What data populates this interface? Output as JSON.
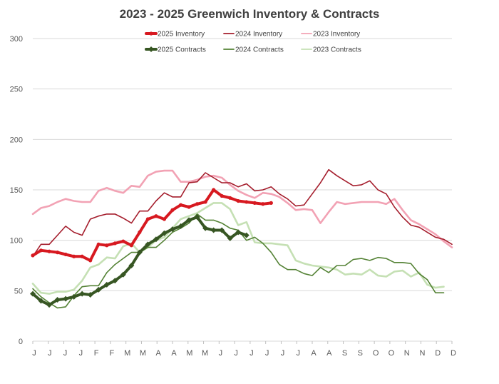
{
  "chart_data": {
    "type": "line",
    "title": "2023 - 2025 Greenwich Inventory & Contracts",
    "xlabel": "",
    "ylabel": "",
    "ylim": [
      0,
      300
    ],
    "yticks": [
      0,
      50,
      100,
      150,
      200,
      250,
      300
    ],
    "grid": true,
    "legend_position": "top",
    "x_tick_labels": [
      "J",
      "J",
      "J",
      "J",
      "F",
      "F",
      "M",
      "M",
      "A",
      "A",
      "M",
      "M",
      "J",
      "J",
      "J",
      "J",
      "J",
      "J",
      "A",
      "A",
      "S",
      "S",
      "O",
      "O",
      "N",
      "N",
      "D",
      "D"
    ],
    "x_count": 52,
    "series": [
      {
        "name": "2025 Inventory",
        "color": "#d71920",
        "style": "thick-marker",
        "values": [
          85,
          90,
          89,
          88,
          86,
          84,
          84,
          80,
          96,
          95,
          97,
          99,
          95,
          108,
          121,
          124,
          121,
          130,
          135,
          133,
          136,
          138,
          150,
          144,
          142,
          139,
          138,
          137,
          136,
          137
        ]
      },
      {
        "name": "2024 Inventory",
        "color": "#a51e2d",
        "style": "line",
        "values": [
          84,
          96,
          96,
          105,
          114,
          108,
          105,
          121,
          124,
          126,
          126,
          122,
          117,
          129,
          129,
          139,
          147,
          143,
          143,
          157,
          158,
          167,
          162,
          157,
          157,
          153,
          156,
          149,
          150,
          153,
          146,
          141,
          134,
          135,
          146,
          157,
          170,
          164,
          159,
          154,
          155,
          159,
          150,
          146,
          133,
          123,
          115,
          113,
          108,
          103,
          101,
          96
        ]
      },
      {
        "name": "2023 Inventory",
        "color": "#f2a2b4",
        "style": "line",
        "values": [
          126,
          132,
          134,
          138,
          141,
          139,
          138,
          138,
          149,
          152,
          149,
          147,
          154,
          153,
          164,
          168,
          169,
          169,
          158,
          158,
          160,
          163,
          164,
          162,
          155,
          149,
          145,
          142,
          147,
          146,
          143,
          137,
          130,
          131,
          130,
          117,
          128,
          138,
          136,
          137,
          138,
          138,
          138,
          136,
          141,
          130,
          120,
          116,
          111,
          106,
          99,
          93
        ]
      },
      {
        "name": "2025 Contracts",
        "color": "#375623",
        "style": "thick-marker",
        "values": [
          47,
          40,
          36,
          41,
          42,
          44,
          47,
          46,
          51,
          56,
          60,
          66,
          75,
          88,
          96,
          101,
          107,
          111,
          114,
          120,
          123,
          112,
          110,
          110,
          102,
          108,
          105
        ]
      },
      {
        "name": "2024 Contracts",
        "color": "#548235",
        "style": "line",
        "values": [
          52,
          44,
          38,
          33,
          34,
          45,
          54,
          55,
          55,
          68,
          76,
          82,
          88,
          88,
          93,
          93,
          100,
          108,
          112,
          117,
          126,
          120,
          120,
          117,
          112,
          110,
          100,
          103,
          97,
          88,
          76,
          71,
          71,
          67,
          65,
          73,
          68,
          75,
          75,
          81,
          82,
          80,
          83,
          82,
          78,
          78,
          77,
          67,
          61,
          48,
          48
        ]
      },
      {
        "name": "2023 Contracts",
        "color": "#c5e0b4",
        "style": "line",
        "values": [
          57,
          48,
          47,
          49,
          49,
          51,
          60,
          73,
          76,
          83,
          82,
          94,
          97,
          88,
          93,
          100,
          103,
          112,
          121,
          124,
          127,
          132,
          137,
          137,
          131,
          115,
          118,
          98,
          97,
          97,
          96,
          95,
          80,
          77,
          75,
          74,
          73,
          71,
          66,
          67,
          66,
          71,
          65,
          64,
          69,
          70,
          64,
          68,
          56,
          53,
          54
        ]
      }
    ]
  }
}
